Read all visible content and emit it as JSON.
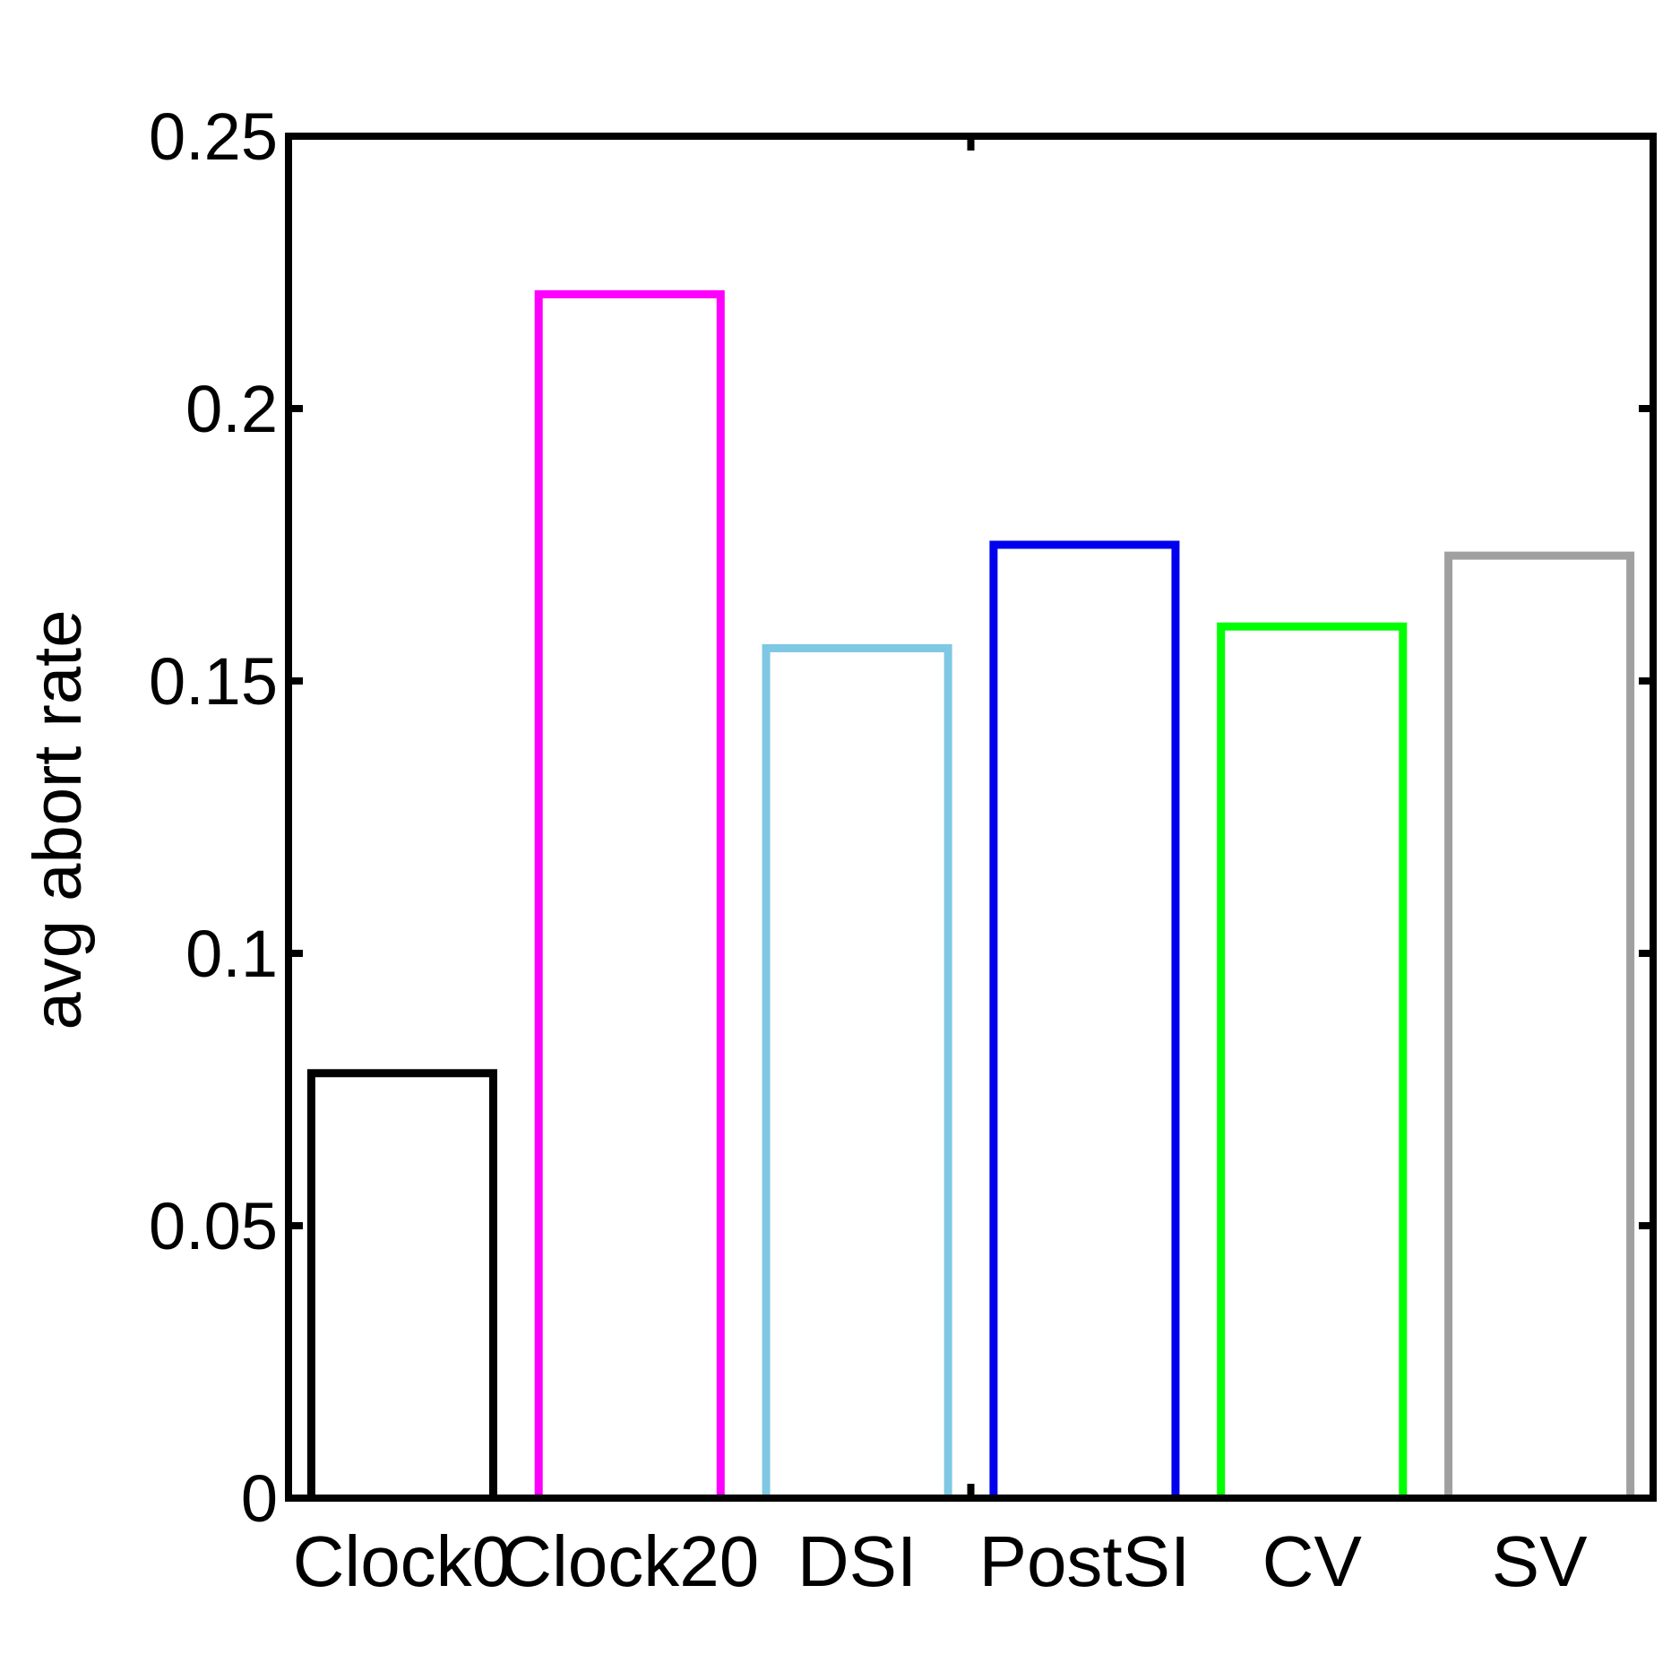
{
  "chart_data": {
    "type": "bar",
    "categories": [
      "Clock0",
      "Clock20",
      "DSI",
      "PostSI",
      "CV",
      "SV"
    ],
    "values": [
      0.078,
      0.221,
      0.156,
      0.175,
      0.16,
      0.173
    ],
    "colors": [
      "#000000",
      "#ff00ff",
      "#7ec8e3",
      "#0000ee",
      "#00ff00",
      "#a0a0a0"
    ],
    "bar_style": "outline",
    "xlabel": "",
    "ylabel": "avg abort rate",
    "ylim": [
      0,
      0.25
    ],
    "yticks": [
      0,
      0.05,
      0.1,
      0.15,
      0.2,
      0.25
    ],
    "ytick_labels": [
      "0",
      "0.05",
      "0.1",
      "0.15",
      "0.2",
      "0.25"
    ],
    "grid": false,
    "legend": "none"
  }
}
